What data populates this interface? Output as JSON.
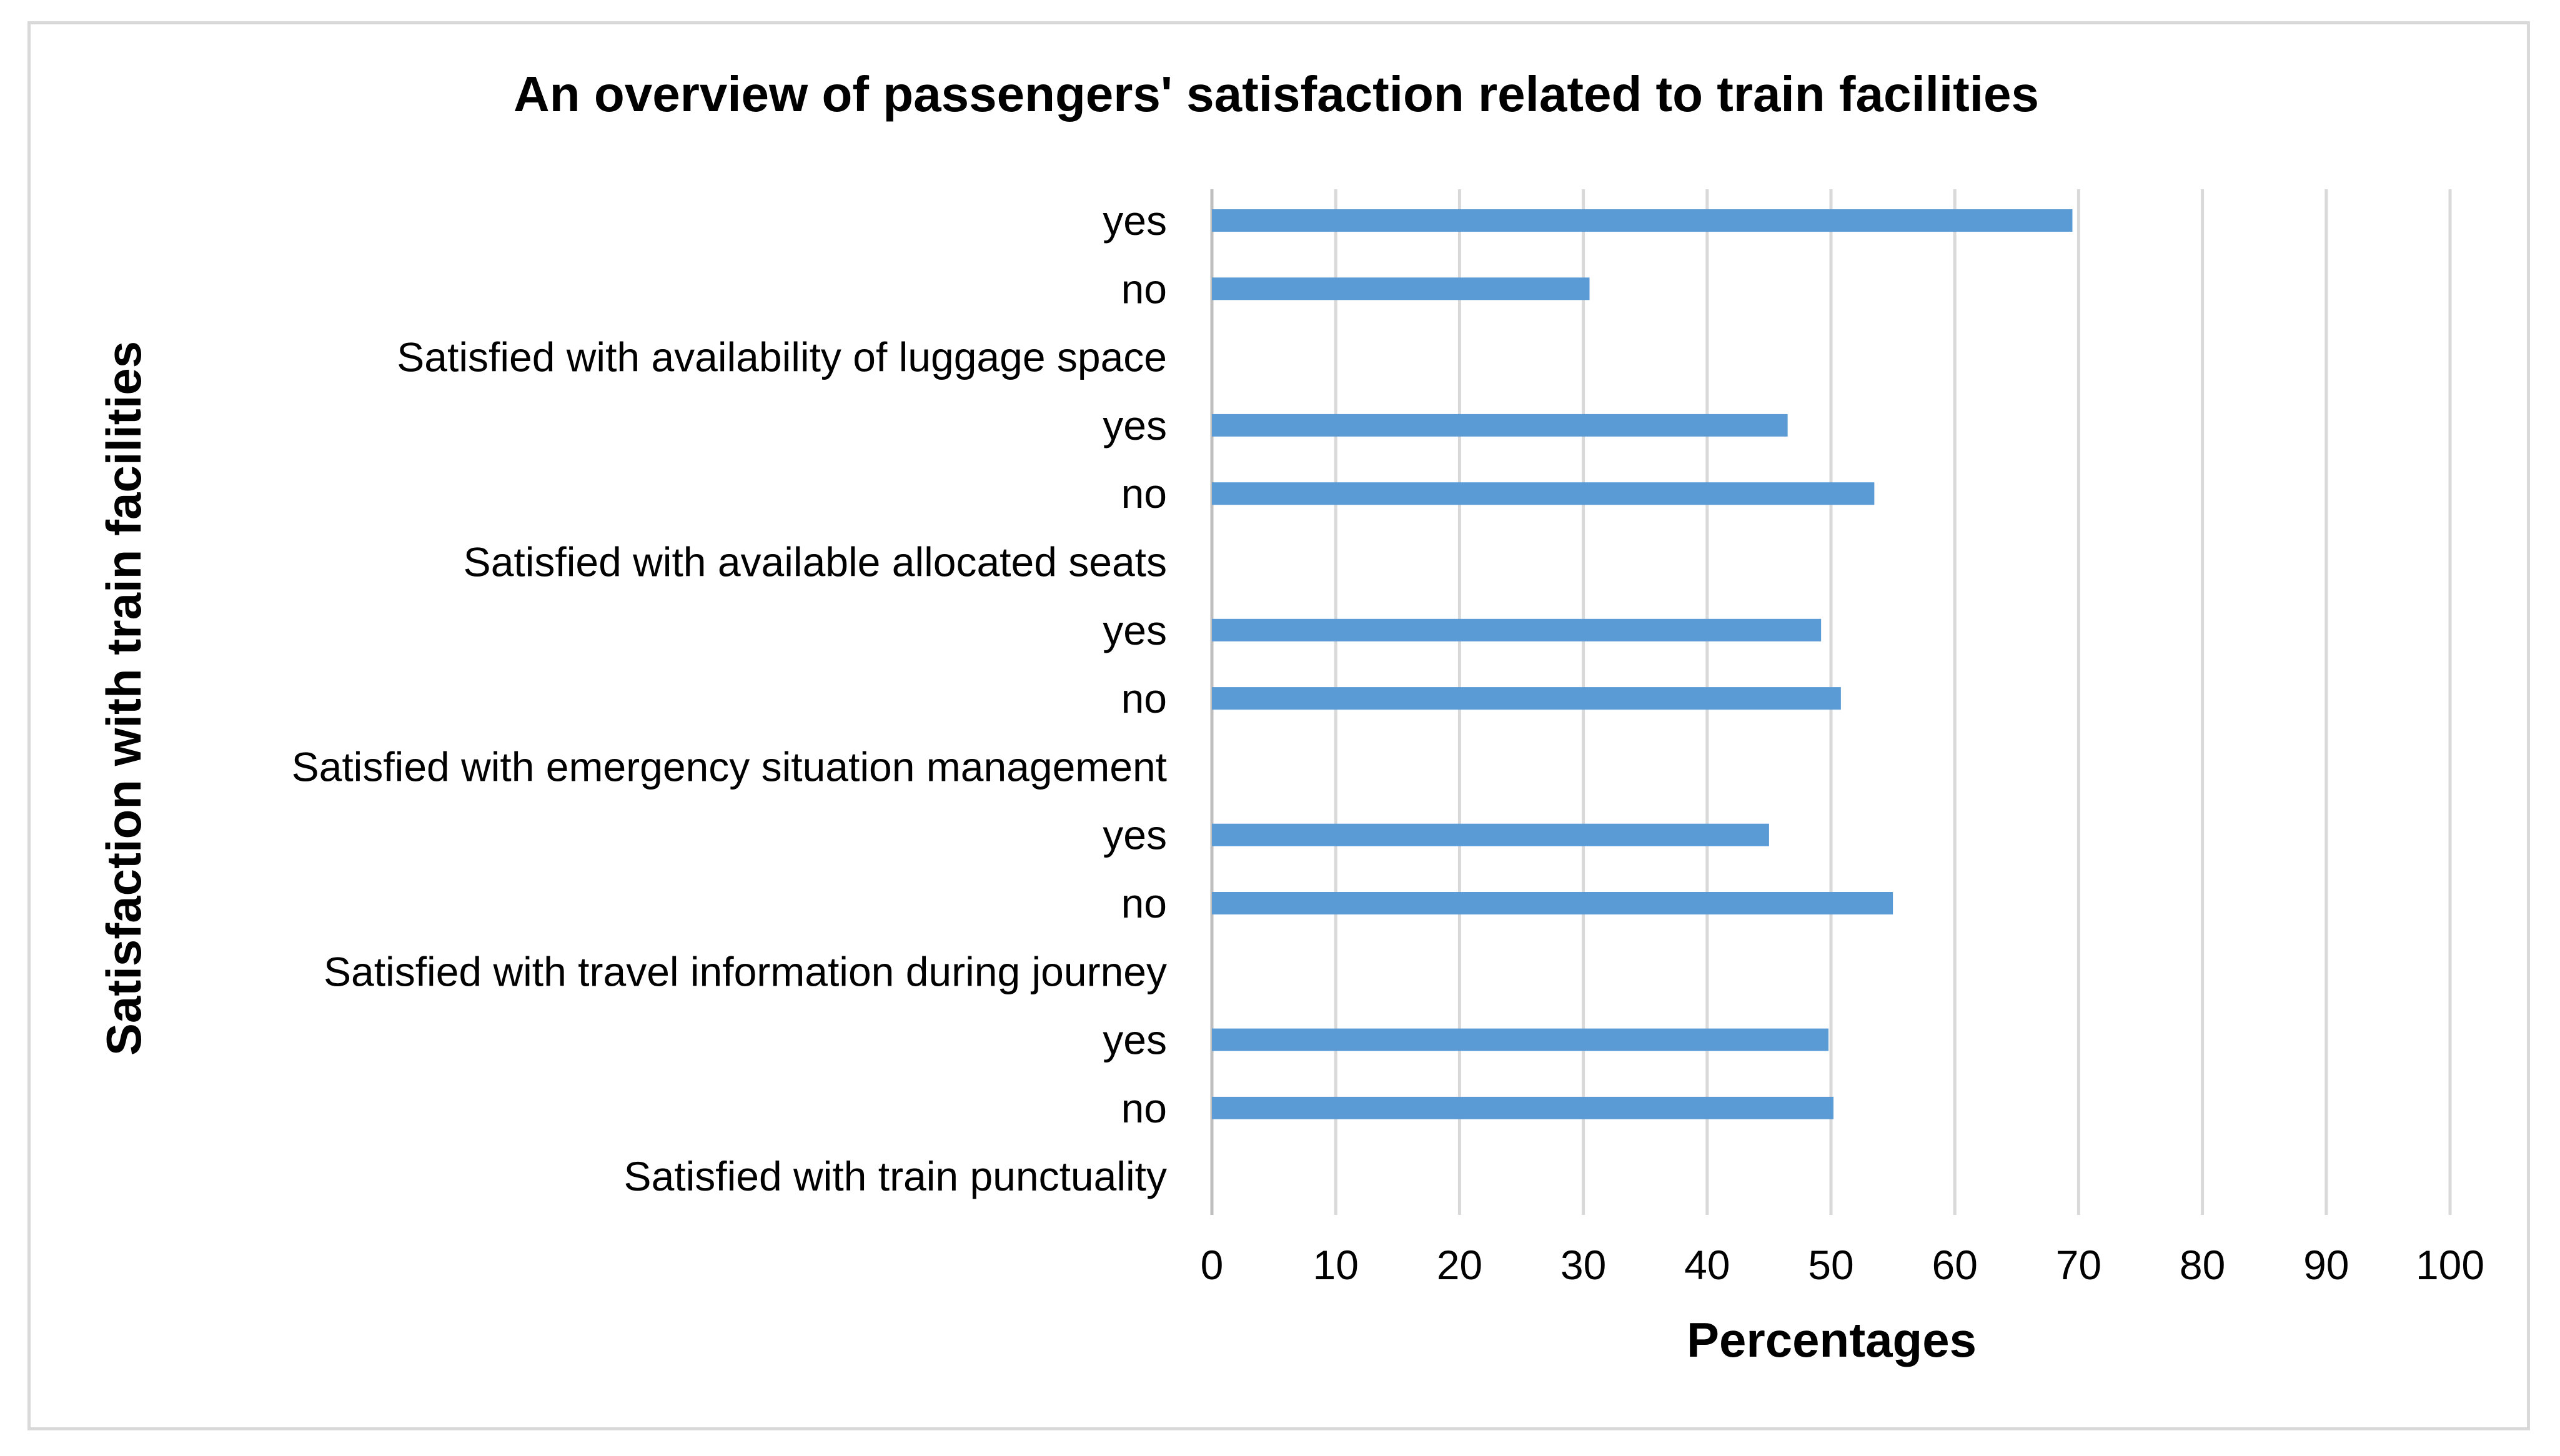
{
  "chart_data": {
    "type": "bar",
    "orientation": "horizontal",
    "title": "An overview of passengers' satisfaction related to train facilities",
    "xlabel": "Percentages",
    "ylabel": "Satisfaction with train facilities",
    "xlim": [
      0,
      100
    ],
    "xticks": [
      "0",
      "10",
      "20",
      "30",
      "40",
      "50",
      "60",
      "70",
      "80",
      "90",
      "100"
    ],
    "grid": "vertical",
    "legend": "none",
    "bar_color": "#5b9bd5",
    "categories": [
      "yes",
      "no",
      "Satisfied with availability of luggage space",
      "yes",
      "no",
      "Satisfied with available allocated seats",
      "yes",
      "no",
      "Satisfied with emergency situation management",
      "yes",
      "no",
      "Satisfied with travel information during journey",
      "yes",
      "no",
      "Satisfied with train punctuality"
    ],
    "values": [
      69.5,
      30.5,
      null,
      46.5,
      53.5,
      null,
      49.2,
      50.8,
      null,
      45,
      55,
      null,
      49.8,
      50.2,
      null
    ]
  }
}
